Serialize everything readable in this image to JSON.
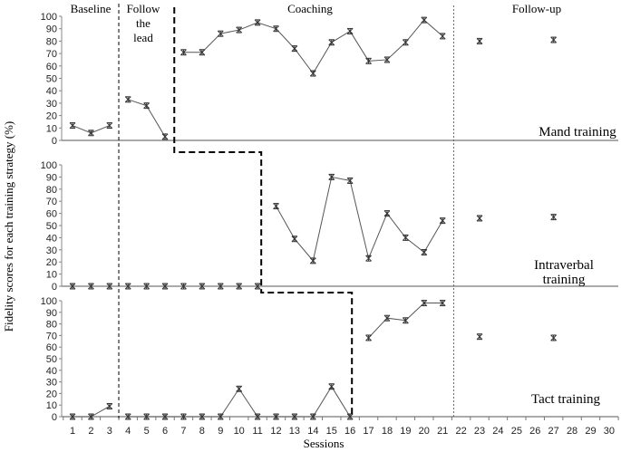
{
  "chart_data": {
    "type": "line",
    "title": "",
    "xlabel": "Sessions",
    "ylabel": "Fidelity scores for each training strategy (%)",
    "x": [
      1,
      2,
      3,
      4,
      5,
      6,
      7,
      8,
      9,
      10,
      11,
      12,
      13,
      14,
      15,
      16,
      17,
      18,
      19,
      20,
      21,
      22,
      23,
      24,
      25,
      26,
      27,
      28,
      29,
      30
    ],
    "ylim": [
      0,
      100
    ],
    "yticks": [
      0,
      10,
      20,
      30,
      40,
      50,
      60,
      70,
      80,
      90,
      100
    ],
    "phases": [
      "Baseline",
      "Follow the lead",
      "Coaching",
      "Follow-up"
    ],
    "panels": [
      {
        "name": "Mand training",
        "points": [
          [
            1,
            12
          ],
          [
            2,
            6
          ],
          [
            3,
            12
          ],
          [
            4,
            33
          ],
          [
            5,
            28
          ],
          [
            6,
            3
          ],
          [
            7,
            71
          ],
          [
            8,
            71
          ],
          [
            9,
            86
          ],
          [
            10,
            89
          ],
          [
            11,
            95
          ],
          [
            12,
            90
          ],
          [
            13,
            74
          ],
          [
            14,
            54
          ],
          [
            15,
            79
          ],
          [
            16,
            88
          ],
          [
            17,
            64
          ],
          [
            18,
            65
          ],
          [
            19,
            79
          ],
          [
            20,
            97
          ],
          [
            21,
            84
          ],
          [
            23,
            80
          ],
          [
            27,
            81
          ]
        ],
        "segments": [
          [
            1,
            3
          ],
          [
            4,
            6
          ],
          [
            7,
            21
          ]
        ]
      },
      {
        "name": "Intraverbal training",
        "points": [
          [
            1,
            0
          ],
          [
            2,
            0
          ],
          [
            3,
            0
          ],
          [
            4,
            0
          ],
          [
            5,
            0
          ],
          [
            6,
            0
          ],
          [
            7,
            0
          ],
          [
            8,
            0
          ],
          [
            9,
            0
          ],
          [
            10,
            0
          ],
          [
            11,
            0
          ],
          [
            12,
            66
          ],
          [
            13,
            39
          ],
          [
            14,
            21
          ],
          [
            15,
            90
          ],
          [
            16,
            87
          ],
          [
            17,
            23
          ],
          [
            18,
            60
          ],
          [
            19,
            40
          ],
          [
            20,
            28
          ],
          [
            21,
            54
          ],
          [
            23,
            56
          ],
          [
            27,
            57
          ]
        ],
        "segments": [
          [
            12,
            21
          ]
        ]
      },
      {
        "name": "Tact training",
        "points": [
          [
            1,
            0
          ],
          [
            2,
            0
          ],
          [
            3,
            9
          ],
          [
            4,
            0
          ],
          [
            5,
            0
          ],
          [
            6,
            0
          ],
          [
            7,
            0
          ],
          [
            8,
            0
          ],
          [
            9,
            0
          ],
          [
            10,
            24
          ],
          [
            11,
            0
          ],
          [
            12,
            0
          ],
          [
            13,
            0
          ],
          [
            14,
            0
          ],
          [
            15,
            26
          ],
          [
            16,
            0
          ],
          [
            17,
            68
          ],
          [
            18,
            85
          ],
          [
            19,
            83
          ],
          [
            20,
            98
          ],
          [
            21,
            98
          ],
          [
            23,
            69
          ],
          [
            27,
            68
          ]
        ],
        "segments": [
          [
            1,
            3
          ],
          [
            4,
            16
          ],
          [
            17,
            21
          ]
        ]
      }
    ],
    "phase_change_sessions": {
      "baseline_to_follow_the_lead": 3.5,
      "coaching_start": [
        6.5,
        11.2,
        16.1
      ],
      "follow_up_start": 21.6
    },
    "grid": false,
    "legend": "none"
  }
}
